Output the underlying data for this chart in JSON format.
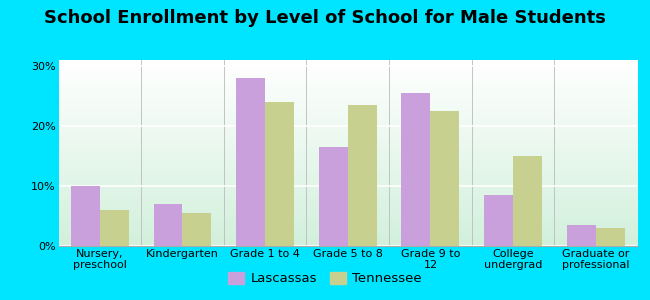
{
  "title": "School Enrollment by Level of School for Male Students",
  "categories": [
    "Nursery,\npreschool",
    "Kindergarten",
    "Grade 1 to 4",
    "Grade 5 to 8",
    "Grade 9 to\n12",
    "College\nundergrad",
    "Graduate or\nprofessional"
  ],
  "lascassas": [
    10.0,
    7.0,
    28.0,
    16.5,
    25.5,
    8.5,
    3.5
  ],
  "tennessee": [
    6.0,
    5.5,
    24.0,
    23.5,
    22.5,
    15.0,
    3.0
  ],
  "lascassas_color": "#c9a0dc",
  "tennessee_color": "#c8d090",
  "background_outer": "#00e5ff",
  "yticks": [
    0,
    10,
    20,
    30
  ],
  "ylim": [
    0,
    31
  ],
  "bar_width": 0.35,
  "title_fontsize": 13,
  "tick_fontsize": 8,
  "legend_fontsize": 9.5
}
